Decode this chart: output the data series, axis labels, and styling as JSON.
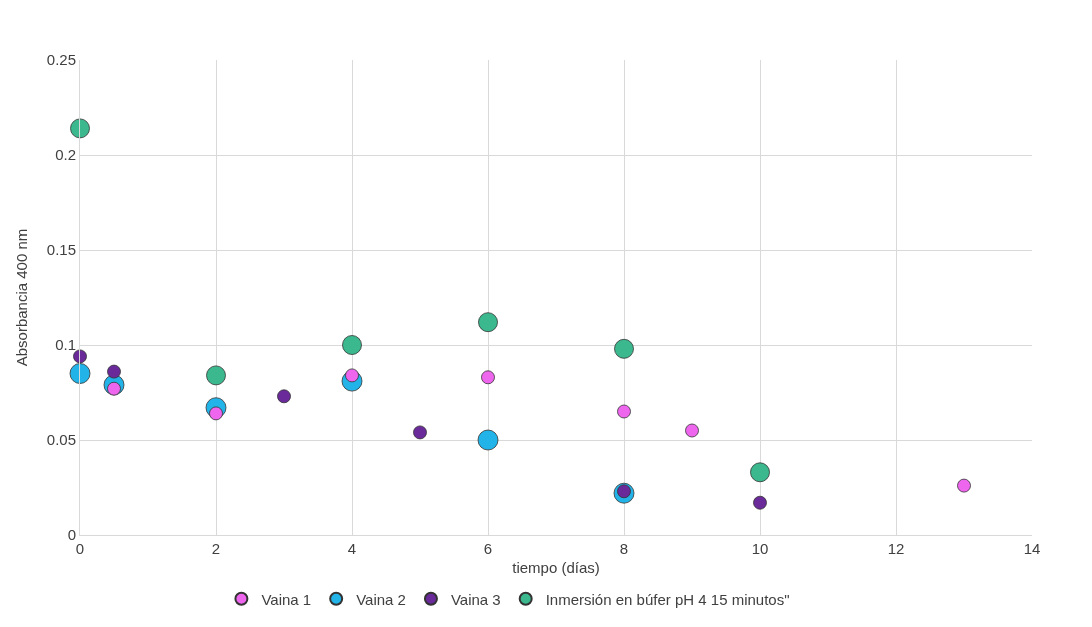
{
  "chart_data": {
    "type": "scatter",
    "xlabel": "tiempo (días)",
    "ylabel": "Absorbancia 400 nm",
    "xlim": [
      0,
      14
    ],
    "xticks": [
      0,
      2,
      4,
      6,
      8,
      10,
      12,
      14
    ],
    "ylim": [
      0,
      0.25
    ],
    "yticks": [
      0,
      0.05,
      0.1,
      0.15,
      0.2,
      0.25
    ],
    "grid": true,
    "legend": "bottom",
    "marker": "circle",
    "series": [
      {
        "name": "Vaina 1",
        "color": "#ee66ee",
        "x": [
          0.5,
          2,
          4,
          6,
          8,
          9,
          13
        ],
        "values": [
          0.077,
          0.064,
          0.084,
          0.083,
          0.065,
          0.055,
          0.026
        ]
      },
      {
        "name": "Vaina 2",
        "color": "#22b4e8",
        "x": [
          0,
          0.5,
          2,
          4,
          6,
          8
        ],
        "values": [
          0.085,
          0.079,
          0.067,
          0.081,
          0.05,
          0.022
        ]
      },
      {
        "name": "Vaina 3",
        "color": "#6a2a9a",
        "x": [
          0,
          0.5,
          3,
          5,
          8,
          10
        ],
        "values": [
          0.094,
          0.086,
          0.073,
          0.054,
          0.023,
          0.017
        ]
      },
      {
        "name": "Inmersión en búfer pH 4 15 minutos\"",
        "color": "#3cb88e",
        "x": [
          0,
          2,
          4,
          6,
          8,
          10
        ],
        "values": [
          0.214,
          0.084,
          0.1,
          0.112,
          0.098,
          0.033
        ]
      }
    ]
  }
}
